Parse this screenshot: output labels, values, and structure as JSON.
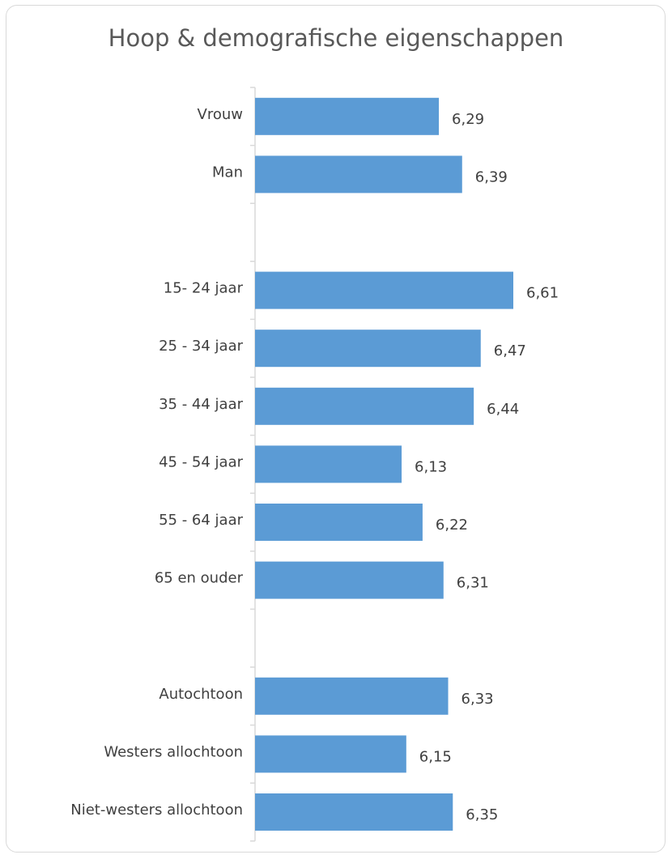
{
  "chart_data": {
    "type": "bar",
    "orientation": "horizontal",
    "title": "Hoop & demografische eigenschappen",
    "xlim": [
      5.5,
      6.75
    ],
    "bar_color": "#5b9bd5",
    "groups": [
      {
        "categories": [
          "Vrouw",
          "Man"
        ],
        "values": [
          6.29,
          6.39
        ],
        "labels": [
          "6,29",
          "6,39"
        ]
      },
      {
        "categories": [
          "15- 24 jaar",
          "25 - 34 jaar",
          "35 - 44 jaar",
          "45 - 54 jaar",
          "55 - 64 jaar",
          "65 en ouder"
        ],
        "values": [
          6.61,
          6.47,
          6.44,
          6.13,
          6.22,
          6.31
        ],
        "labels": [
          "6,61",
          "6,47",
          "6,44",
          "6,13",
          "6,22",
          "6,31"
        ]
      },
      {
        "categories": [
          "Autochtoon",
          "Westers allochtoon",
          "Niet-westers allochtoon"
        ],
        "values": [
          6.33,
          6.15,
          6.35
        ],
        "labels": [
          "6,33",
          "6,15",
          "6,35"
        ]
      }
    ]
  }
}
